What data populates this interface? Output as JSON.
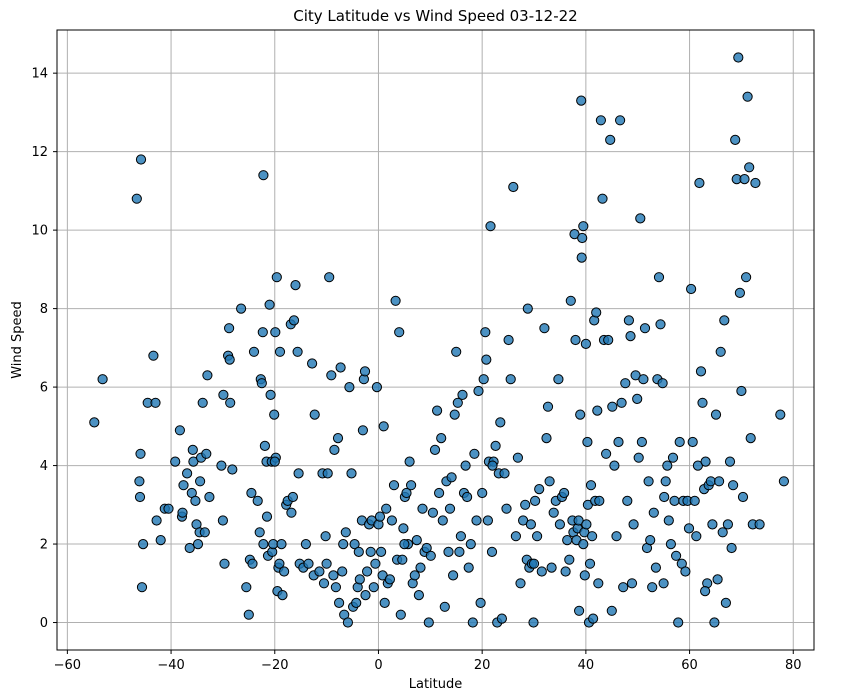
{
  "chart_data": {
    "type": "scatter",
    "title": "City Latitude vs Wind Speed 03-12-22",
    "xlabel": "Latitude",
    "ylabel": "Wind Speed",
    "xlim": [
      -62,
      84
    ],
    "ylim": [
      -0.7,
      15.1
    ],
    "xticks": [
      -60,
      -40,
      -20,
      0,
      20,
      40,
      60,
      80
    ],
    "yticks": [
      0,
      2,
      4,
      6,
      8,
      10,
      12,
      14
    ],
    "grid": true,
    "marker_color": "#1f77b4",
    "marker_alpha": 0.8,
    "marker_edge": "#000000",
    "points": [
      [
        -54.8,
        5.1
      ],
      [
        -53.2,
        6.2
      ],
      [
        -46.6,
        10.8
      ],
      [
        -46.1,
        3.6
      ],
      [
        -46.0,
        3.2
      ],
      [
        -45.9,
        4.3
      ],
      [
        -45.8,
        11.8
      ],
      [
        -45.6,
        0.9
      ],
      [
        -45.4,
        2.0
      ],
      [
        -44.5,
        5.6
      ],
      [
        -43.4,
        6.8
      ],
      [
        -43.0,
        5.6
      ],
      [
        -42.8,
        2.6
      ],
      [
        -42.0,
        2.1
      ],
      [
        -41.2,
        2.9
      ],
      [
        -40.5,
        2.9
      ],
      [
        -39.2,
        4.1
      ],
      [
        -38.3,
        4.9
      ],
      [
        -37.9,
        2.7
      ],
      [
        -37.8,
        2.8
      ],
      [
        -37.6,
        3.5
      ],
      [
        -36.9,
        3.8
      ],
      [
        -36.4,
        1.9
      ],
      [
        -36.0,
        3.3
      ],
      [
        -35.8,
        4.4
      ],
      [
        -35.7,
        4.1
      ],
      [
        -35.3,
        3.1
      ],
      [
        -35.1,
        2.5
      ],
      [
        -34.8,
        2.0
      ],
      [
        -34.5,
        2.3
      ],
      [
        -34.4,
        3.6
      ],
      [
        -34.2,
        4.2
      ],
      [
        -33.9,
        5.6
      ],
      [
        -33.5,
        2.3
      ],
      [
        -33.2,
        4.3
      ],
      [
        -32.6,
        3.2
      ],
      [
        -33.0,
        6.3
      ],
      [
        -30.3,
        4.0
      ],
      [
        -30.0,
        2.6
      ],
      [
        -29.9,
        5.8
      ],
      [
        -29.7,
        1.5
      ],
      [
        -29.0,
        6.8
      ],
      [
        -28.7,
        6.7
      ],
      [
        -28.6,
        5.6
      ],
      [
        -28.2,
        3.9
      ],
      [
        -28.8,
        7.5
      ],
      [
        -26.5,
        8.0
      ],
      [
        -25.5,
        0.9
      ],
      [
        -25.0,
        0.2
      ],
      [
        -24.8,
        1.6
      ],
      [
        -24.5,
        3.3
      ],
      [
        -24.3,
        1.5
      ],
      [
        -24.0,
        6.9
      ],
      [
        -23.3,
        3.1
      ],
      [
        -22.9,
        2.3
      ],
      [
        -22.7,
        6.2
      ],
      [
        -22.5,
        6.1
      ],
      [
        -22.3,
        7.4
      ],
      [
        -22.2,
        2.0
      ],
      [
        -22.2,
        11.4
      ],
      [
        -21.9,
        4.5
      ],
      [
        -21.6,
        4.1
      ],
      [
        -21.5,
        2.7
      ],
      [
        -21.3,
        1.7
      ],
      [
        -21.0,
        8.1
      ],
      [
        -20.8,
        5.8
      ],
      [
        -20.6,
        4.1
      ],
      [
        -20.5,
        1.8
      ],
      [
        -20.3,
        2.0
      ],
      [
        -20.1,
        5.3
      ],
      [
        -19.9,
        7.4
      ],
      [
        -19.8,
        4.2
      ],
      [
        -19.6,
        8.8
      ],
      [
        -19.5,
        0.8
      ],
      [
        -19.3,
        1.4
      ],
      [
        -19.1,
        1.5
      ],
      [
        -19.0,
        6.9
      ],
      [
        -18.7,
        2.0
      ],
      [
        -18.5,
        0.7
      ],
      [
        -18.2,
        1.3
      ],
      [
        -17.8,
        3.0
      ],
      [
        -17.5,
        3.1
      ],
      [
        -16.9,
        7.6
      ],
      [
        -16.8,
        2.8
      ],
      [
        -16.5,
        3.2
      ],
      [
        -16.3,
        7.7
      ],
      [
        -16.0,
        8.6
      ],
      [
        -15.6,
        6.9
      ],
      [
        -15.4,
        3.8
      ],
      [
        -15.2,
        1.5
      ],
      [
        -14.5,
        1.4
      ],
      [
        -14.0,
        2.0
      ],
      [
        -13.5,
        1.5
      ],
      [
        -12.8,
        6.6
      ],
      [
        -12.5,
        1.2
      ],
      [
        -12.3,
        5.3
      ],
      [
        -11.4,
        1.3
      ],
      [
        -10.8,
        3.8
      ],
      [
        -10.5,
        1.0
      ],
      [
        -10.2,
        2.2
      ],
      [
        -10.0,
        1.5
      ],
      [
        -9.8,
        3.8
      ],
      [
        -9.5,
        8.8
      ],
      [
        -9.1,
        6.3
      ],
      [
        -8.7,
        1.2
      ],
      [
        -8.5,
        4.4
      ],
      [
        -8.2,
        0.9
      ],
      [
        -7.8,
        4.7
      ],
      [
        -7.6,
        0.5
      ],
      [
        -7.3,
        6.5
      ],
      [
        -7.0,
        1.3
      ],
      [
        -6.8,
        2.0
      ],
      [
        -6.6,
        0.2
      ],
      [
        -6.3,
        2.3
      ],
      [
        -5.9,
        0.0
      ],
      [
        -5.6,
        6.0
      ],
      [
        -5.2,
        3.8
      ],
      [
        -4.9,
        0.4
      ],
      [
        -4.6,
        2.0
      ],
      [
        -4.3,
        0.5
      ],
      [
        -4.0,
        0.9
      ],
      [
        -3.8,
        1.8
      ],
      [
        -3.6,
        1.1
      ],
      [
        -3.2,
        2.6
      ],
      [
        -3.0,
        4.9
      ],
      [
        -2.8,
        6.2
      ],
      [
        -2.6,
        6.4
      ],
      [
        -2.5,
        0.7
      ],
      [
        -2.2,
        1.3
      ],
      [
        -1.8,
        2.5
      ],
      [
        -1.5,
        1.8
      ],
      [
        -1.3,
        2.6
      ],
      [
        -0.9,
        0.9
      ],
      [
        -0.6,
        1.5
      ],
      [
        -0.3,
        6.0
      ],
      [
        0.0,
        2.5
      ],
      [
        0.3,
        2.7
      ],
      [
        0.5,
        1.8
      ],
      [
        0.8,
        1.2
      ],
      [
        1.0,
        5.0
      ],
      [
        1.2,
        0.5
      ],
      [
        1.5,
        2.9
      ],
      [
        1.8,
        1.0
      ],
      [
        2.2,
        1.1
      ],
      [
        2.6,
        2.6
      ],
      [
        3.0,
        3.5
      ],
      [
        3.3,
        8.2
      ],
      [
        3.6,
        1.6
      ],
      [
        4.0,
        7.4
      ],
      [
        4.3,
        0.2
      ],
      [
        4.6,
        1.6
      ],
      [
        4.8,
        2.4
      ],
      [
        5.1,
        3.2
      ],
      [
        5.4,
        3.3
      ],
      [
        5.7,
        2.0
      ],
      [
        6.0,
        4.1
      ],
      [
        6.3,
        3.5
      ],
      [
        6.6,
        1.0
      ],
      [
        7.0,
        1.2
      ],
      [
        7.4,
        2.1
      ],
      [
        7.8,
        0.7
      ],
      [
        8.1,
        1.4
      ],
      [
        8.5,
        2.9
      ],
      [
        8.9,
        1.8
      ],
      [
        9.3,
        1.9
      ],
      [
        9.7,
        0.0
      ],
      [
        10.1,
        1.7
      ],
      [
        10.5,
        2.8
      ],
      [
        10.9,
        4.4
      ],
      [
        11.3,
        5.4
      ],
      [
        11.7,
        3.3
      ],
      [
        12.1,
        4.7
      ],
      [
        12.4,
        2.6
      ],
      [
        12.8,
        0.4
      ],
      [
        13.1,
        3.6
      ],
      [
        13.5,
        1.8
      ],
      [
        13.8,
        2.9
      ],
      [
        14.1,
        3.7
      ],
      [
        14.4,
        1.2
      ],
      [
        14.7,
        5.3
      ],
      [
        15.0,
        6.9
      ],
      [
        15.3,
        5.6
      ],
      [
        15.6,
        1.8
      ],
      [
        15.9,
        2.2
      ],
      [
        16.2,
        5.8
      ],
      [
        16.5,
        3.3
      ],
      [
        16.8,
        4.0
      ],
      [
        17.1,
        3.2
      ],
      [
        17.4,
        1.4
      ],
      [
        17.8,
        2.0
      ],
      [
        18.2,
        0.0
      ],
      [
        18.5,
        4.3
      ],
      [
        18.9,
        2.6
      ],
      [
        19.3,
        5.9
      ],
      [
        19.7,
        0.5
      ],
      [
        20.0,
        3.3
      ],
      [
        20.3,
        6.2
      ],
      [
        20.6,
        7.4
      ],
      [
        20.8,
        6.7
      ],
      [
        21.1,
        2.6
      ],
      [
        21.3,
        4.1
      ],
      [
        21.6,
        10.1
      ],
      [
        21.9,
        1.8
      ],
      [
        22.2,
        4.1
      ],
      [
        22.6,
        4.5
      ],
      [
        22.9,
        0.0
      ],
      [
        23.2,
        3.8
      ],
      [
        23.5,
        5.1
      ],
      [
        23.8,
        0.1
      ],
      [
        24.3,
        3.8
      ],
      [
        24.7,
        2.9
      ],
      [
        25.1,
        7.2
      ],
      [
        25.5,
        6.2
      ],
      [
        26.0,
        11.1
      ],
      [
        26.5,
        2.2
      ],
      [
        26.9,
        4.2
      ],
      [
        27.4,
        1.0
      ],
      [
        27.9,
        2.6
      ],
      [
        28.3,
        3.0
      ],
      [
        28.6,
        1.6
      ],
      [
        28.8,
        8.0
      ],
      [
        29.1,
        1.4
      ],
      [
        29.4,
        2.5
      ],
      [
        29.6,
        1.5
      ],
      [
        29.9,
        0.0
      ],
      [
        30.2,
        3.1
      ],
      [
        30.6,
        2.2
      ],
      [
        31.0,
        3.4
      ],
      [
        31.5,
        1.3
      ],
      [
        32.0,
        7.5
      ],
      [
        32.4,
        4.7
      ],
      [
        32.7,
        5.5
      ],
      [
        33.0,
        3.6
      ],
      [
        33.4,
        1.4
      ],
      [
        33.8,
        2.8
      ],
      [
        34.2,
        3.1
      ],
      [
        34.7,
        6.2
      ],
      [
        35.0,
        2.5
      ],
      [
        35.4,
        3.2
      ],
      [
        35.8,
        3.3
      ],
      [
        36.1,
        1.3
      ],
      [
        36.4,
        2.1
      ],
      [
        36.8,
        1.6
      ],
      [
        37.1,
        8.2
      ],
      [
        37.4,
        2.6
      ],
      [
        37.6,
        2.3
      ],
      [
        37.8,
        9.9
      ],
      [
        38.0,
        7.2
      ],
      [
        38.2,
        2.1
      ],
      [
        38.4,
        2.4
      ],
      [
        38.6,
        2.6
      ],
      [
        38.7,
        0.3
      ],
      [
        38.9,
        5.3
      ],
      [
        39.1,
        13.3
      ],
      [
        39.2,
        9.3
      ],
      [
        39.3,
        9.8
      ],
      [
        39.5,
        10.1
      ],
      [
        39.7,
        2.3
      ],
      [
        39.8,
        1.2
      ],
      [
        40.0,
        7.1
      ],
      [
        40.1,
        2.5
      ],
      [
        40.3,
        4.6
      ],
      [
        40.4,
        3.0
      ],
      [
        40.6,
        0.0
      ],
      [
        40.8,
        1.5
      ],
      [
        41.0,
        3.5
      ],
      [
        41.2,
        2.2
      ],
      [
        41.4,
        0.1
      ],
      [
        41.6,
        7.7
      ],
      [
        41.8,
        3.1
      ],
      [
        42.0,
        7.9
      ],
      [
        42.2,
        5.4
      ],
      [
        42.4,
        1.0
      ],
      [
        42.6,
        3.1
      ],
      [
        42.9,
        12.8
      ],
      [
        43.2,
        10.8
      ],
      [
        43.5,
        7.2
      ],
      [
        43.9,
        4.3
      ],
      [
        44.3,
        7.2
      ],
      [
        44.7,
        12.3
      ],
      [
        45.1,
        5.5
      ],
      [
        45.5,
        4.0
      ],
      [
        45.9,
        2.2
      ],
      [
        46.3,
        4.6
      ],
      [
        46.6,
        12.8
      ],
      [
        46.9,
        5.6
      ],
      [
        47.2,
        0.9
      ],
      [
        47.6,
        6.1
      ],
      [
        48.0,
        3.1
      ],
      [
        48.3,
        7.7
      ],
      [
        48.6,
        7.3
      ],
      [
        48.9,
        1.0
      ],
      [
        49.2,
        2.5
      ],
      [
        49.6,
        6.3
      ],
      [
        49.9,
        5.7
      ],
      [
        50.2,
        4.2
      ],
      [
        50.5,
        10.3
      ],
      [
        50.8,
        4.6
      ],
      [
        51.1,
        6.2
      ],
      [
        51.4,
        7.5
      ],
      [
        51.8,
        1.9
      ],
      [
        52.1,
        3.6
      ],
      [
        52.4,
        2.1
      ],
      [
        52.8,
        0.9
      ],
      [
        53.1,
        2.8
      ],
      [
        53.5,
        1.4
      ],
      [
        53.8,
        6.2
      ],
      [
        54.1,
        8.8
      ],
      [
        54.4,
        7.6
      ],
      [
        54.8,
        6.1
      ],
      [
        55.1,
        3.2
      ],
      [
        55.4,
        3.6
      ],
      [
        55.7,
        4.0
      ],
      [
        56.0,
        2.6
      ],
      [
        56.4,
        2.0
      ],
      [
        56.8,
        4.2
      ],
      [
        57.1,
        3.1
      ],
      [
        57.4,
        1.7
      ],
      [
        57.8,
        0.0
      ],
      [
        58.1,
        4.6
      ],
      [
        58.5,
        1.5
      ],
      [
        58.8,
        3.1
      ],
      [
        59.2,
        1.3
      ],
      [
        59.6,
        3.1
      ],
      [
        59.9,
        2.4
      ],
      [
        60.3,
        8.5
      ],
      [
        60.6,
        4.6
      ],
      [
        61.0,
        3.1
      ],
      [
        61.3,
        2.2
      ],
      [
        61.6,
        4.0
      ],
      [
        61.9,
        11.2
      ],
      [
        62.2,
        6.4
      ],
      [
        62.5,
        5.6
      ],
      [
        62.8,
        3.4
      ],
      [
        63.1,
        4.1
      ],
      [
        63.4,
        1.0
      ],
      [
        63.7,
        3.5
      ],
      [
        64.1,
        3.6
      ],
      [
        64.4,
        2.5
      ],
      [
        64.8,
        0.0
      ],
      [
        65.1,
        5.3
      ],
      [
        65.4,
        1.1
      ],
      [
        65.7,
        3.6
      ],
      [
        66.0,
        6.9
      ],
      [
        66.4,
        2.3
      ],
      [
        66.7,
        7.7
      ],
      [
        67.0,
        0.5
      ],
      [
        67.4,
        2.5
      ],
      [
        67.8,
        4.1
      ],
      [
        68.1,
        1.9
      ],
      [
        68.4,
        3.5
      ],
      [
        68.8,
        12.3
      ],
      [
        69.1,
        11.3
      ],
      [
        69.4,
        14.4
      ],
      [
        69.7,
        8.4
      ],
      [
        70.0,
        5.9
      ],
      [
        70.3,
        3.2
      ],
      [
        70.6,
        11.3
      ],
      [
        70.9,
        8.8
      ],
      [
        71.2,
        13.4
      ],
      [
        71.5,
        11.6
      ],
      [
        71.8,
        4.7
      ],
      [
        72.2,
        2.5
      ],
      [
        72.7,
        11.2
      ],
      [
        73.5,
        2.5
      ],
      [
        77.5,
        5.3
      ],
      [
        78.2,
        3.6
      ],
      [
        22.0,
        4.0
      ],
      [
        -20.0,
        4.1
      ],
      [
        5.0,
        2.0
      ],
      [
        30.0,
        1.5
      ],
      [
        39.5,
        2.0
      ],
      [
        45.0,
        0.3
      ],
      [
        55.0,
        1.0
      ],
      [
        63.0,
        0.8
      ]
    ]
  }
}
